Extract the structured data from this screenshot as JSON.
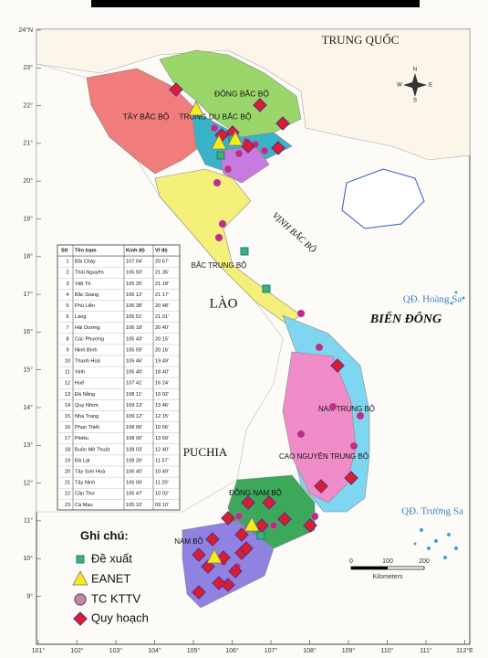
{
  "latitude_ticks": [
    "24°N",
    "23°",
    "22°",
    "21°",
    "20°",
    "19°",
    "18°",
    "17°",
    "16°",
    "15°",
    "14°",
    "13°",
    "12°",
    "11°",
    "10°",
    "9°"
  ],
  "longitude_ticks": [
    "101°",
    "102°",
    "103°",
    "104°",
    "105°",
    "106°",
    "107°",
    "108°",
    "109°",
    "110°",
    "111°",
    "112°E"
  ],
  "regions": [
    "TRUNG QUỐC",
    "ĐÔNG BẮC BỘ",
    "TÂY BẮC BỘ",
    "TRUNG DU BẮC BỘ",
    "VỊNH BẮC BỘ",
    "BẮC TRUNG BỘ",
    "LÀO",
    "BIỂN ĐÔNG",
    "QĐ. Hoàng Sa",
    "NAM TRUNG BỘ",
    "CAO NGUYÊN TRUNG BỘ",
    "PUCHIA",
    "ĐÔNG NAM BỘ",
    "NAM BỘ",
    "QĐ. Trường Sa"
  ],
  "station_table": {
    "header": [
      "Stt",
      "Tên trạm",
      "Kinh độ",
      "Vĩ độ"
    ],
    "rows": [
      [
        "1",
        "Bãi Cháy",
        "107 04'",
        "20 57'"
      ],
      [
        "2",
        "Thái Nguyên",
        "105 50'",
        "21 35'"
      ],
      [
        "3",
        "Việt Trì",
        "105 25'",
        "21 18'"
      ],
      [
        "4",
        "Bắc Giang",
        "106 12'",
        "21 17'"
      ],
      [
        "5",
        "Phú Liễn",
        "106 38'",
        "20 48'"
      ],
      [
        "6",
        "Láng",
        "105 51'",
        "21 01'"
      ],
      [
        "7",
        "Hải Dương",
        "106 18'",
        "20 40'"
      ],
      [
        "8",
        "Cúc Phương",
        "105 43'",
        "20 15'"
      ],
      [
        "9",
        "Ninh Bình",
        "105 59'",
        "20 16'"
      ],
      [
        "10",
        "Thanh Hoá",
        "105 46'",
        "19 49'"
      ],
      [
        "11",
        "Vinh",
        "105 40'",
        "18 40'"
      ],
      [
        "12",
        "Huế",
        "107 41'",
        "16 24'"
      ],
      [
        "13",
        "Đà Nẵng",
        "108 11'",
        "16 02'"
      ],
      [
        "14",
        "Quy Nhơn",
        "109 13'",
        "13 46'"
      ],
      [
        "15",
        "Nha Trang",
        "109 12'",
        "12 15'"
      ],
      [
        "16",
        "Phan Thiết",
        "108 06'",
        "10 56'"
      ],
      [
        "17",
        "Pleiku",
        "108 00'",
        "13 59'"
      ],
      [
        "18",
        "Buôn Mê Thuột",
        "108 03'",
        "12 40'"
      ],
      [
        "19",
        "Đà Lạt",
        "108 26'",
        "11 57'"
      ],
      [
        "20",
        "Tây Sơn Hoà",
        "106 40'",
        "10 49'"
      ],
      [
        "21",
        "Tây Ninh",
        "106 06'",
        "11 20'"
      ],
      [
        "22",
        "Cần Thơ",
        "105 47'",
        "10 02'"
      ],
      [
        "23",
        "Cà Mau",
        "105 10'",
        "09 10'"
      ]
    ]
  },
  "legend": {
    "title": "Ghi chú:",
    "items": [
      "Đề xuất",
      "EANET",
      "TC KTTV",
      "Quy hoạch"
    ]
  },
  "scale_bar": {
    "ticks": [
      "0",
      "100",
      "200"
    ],
    "unit": "Kilometers"
  },
  "compass": [
    "N",
    "S",
    "E",
    "W"
  ]
}
